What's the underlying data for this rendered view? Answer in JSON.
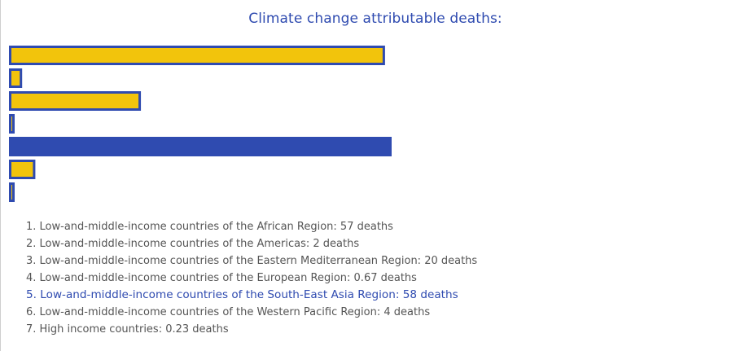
{
  "title": "Climate change attributable deaths:",
  "colors": {
    "bar_fill": "#f2c40c",
    "bar_border": "#2f4bb0",
    "highlight": "#2f4bb0",
    "text": "#555555"
  },
  "highlighted_index": 4,
  "legend_items": [
    "1. Low-and-middle-income countries of the African Region: 57 deaths",
    "2. Low-and-middle-income countries of the Americas: 2 deaths",
    "3. Low-and-middle-income countries of the Eastern Mediterranean Region: 20 deaths",
    "4. Low-and-middle-income countries of the European Region: 0.67 deaths",
    "5. Low-and-middle-income countries of the South-East Asia Region: 58 deaths",
    "6. Low-and-middle-income countries of the Western Pacific Region: 4 deaths",
    "7. High income countries: 0.23 deaths"
  ],
  "chart_data": {
    "type": "bar",
    "orientation": "horizontal",
    "title": "Climate change attributable deaths:",
    "categories": [
      "Low-and-middle-income countries of the African Region",
      "Low-and-middle-income countries of the Americas",
      "Low-and-middle-income countries of the Eastern Mediterranean Region",
      "Low-and-middle-income countries of the European Region",
      "Low-and-middle-income countries of the South-East Asia Region",
      "Low-and-middle-income countries of the Western Pacific Region",
      "High income countries"
    ],
    "values": [
      57,
      2,
      20,
      0.67,
      58,
      4,
      0.23
    ],
    "unit": "deaths",
    "grid": false
  }
}
